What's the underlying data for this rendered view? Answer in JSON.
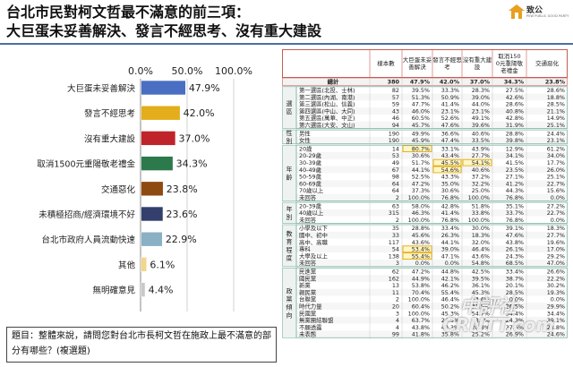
{
  "title_line1": "台北市民對柯文哲最不滿意的前三項：",
  "title_line2": "大巨蛋未妥善解決、發言不經思考、沒有重大建設",
  "logo": {
    "name": "台灣民意",
    "name_highlight": "致公",
    "sub": "PEW PUBLIC GOOD PARTY"
  },
  "question": "題目：整體來說，請問您對台北市長柯文哲在施政上最不滿意的部分有哪些？(複選題)",
  "watermark": {
    "line1": "中評社",
    "line2": "CRNTT.com"
  },
  "chart_data": {
    "type": "bar",
    "orientation": "horizontal",
    "categories": [
      "大巨蛋未妥善解決",
      "發言不經思考",
      "沒有重大建設",
      "取消1500元重陽敬老禮金",
      "交通惡化",
      "未積極招商/經濟環境不好",
      "台北市政府人員流動快速",
      "其他",
      "無明確意見"
    ],
    "values": [
      47.9,
      42.0,
      37.0,
      34.3,
      23.8,
      23.6,
      22.9,
      6.1,
      4.4
    ],
    "value_labels": [
      "47.9%",
      "42.0%",
      "37.0%",
      "34.3%",
      "23.8%",
      "23.6%",
      "22.9%",
      "6.1%",
      "4.4%"
    ],
    "colors": [
      "#4a6fc2",
      "#e3ad1b",
      "#c0242b",
      "#2c7a4c",
      "#8f4a12",
      "#343f6e",
      "#8ab0c4",
      "#f2d68c",
      "#c8c8cc"
    ],
    "xlim": [
      0,
      100
    ],
    "xticks": [
      "0.0%",
      "50.0%",
      "100.0%"
    ],
    "grid": true
  },
  "table": {
    "headers": [
      "樣本數",
      "大巨蛋未妥善解決",
      "發言不經思考",
      "沒有重大建設",
      "取消1500元重陽敬老禮金",
      "交通惡化"
    ],
    "total": {
      "label": "總計",
      "values": [
        "380",
        "47.9%",
        "42.0%",
        "37.0%",
        "34.3%",
        "23.8%"
      ]
    },
    "groups": [
      {
        "name": "選區",
        "rows": [
          {
            "label": "第一選區(北投、士林)",
            "values": [
              "82",
              "39.5%",
              "33.3%",
              "28.3%",
              "27.5%",
              "28.6%"
            ]
          },
          {
            "label": "第二選區(內湖、南港)",
            "values": [
              "57",
              "51.3%",
              "50.9%",
              "39.0%",
              "42.6%",
              "18.8%"
            ]
          },
          {
            "label": "第三選區(松山、信義)",
            "values": [
              "59",
              "47.7%",
              "41.4%",
              "44.0%",
              "28.6%",
              "28.5%"
            ]
          },
          {
            "label": "第四選區(中山、大同)",
            "values": [
              "43",
              "46.0%",
              "23.1%",
              "23.1%",
              "40.8%",
              "21.1%"
            ]
          },
          {
            "label": "第五選區(萬華、中正)",
            "values": [
              "46",
              "60.5%",
              "52.6%",
              "49.1%",
              "42.8%",
              "14.9%"
            ]
          },
          {
            "label": "第六選區(大安、文山)",
            "values": [
              "94",
              "45.7%",
              "47.6%",
              "39.6%",
              "31.9%",
              "25.1%"
            ]
          }
        ]
      },
      {
        "name": "性別",
        "rows": [
          {
            "label": "男性",
            "values": [
              "190",
              "49.9%",
              "36.6%",
              "40.6%",
              "28.8%",
              "24.4%"
            ]
          },
          {
            "label": "女性",
            "values": [
              "190",
              "45.9%",
              "47.4%",
              "33.5%",
              "39.8%",
              "23.1%"
            ]
          }
        ]
      },
      {
        "name": "年齡",
        "rows": [
          {
            "label": "20歲",
            "values": [
              "14",
              "80.7%",
              "33.1%",
              "43.9%",
              "12.9%",
              "61.2%"
            ]
          },
          {
            "label": "20-29歲",
            "values": [
              "53",
              "30.6%",
              "43.4%",
              "27.7%",
              "34.1%",
              "34.0%"
            ]
          },
          {
            "label": "30-39歲",
            "values": [
              "49",
              "51.7%",
              "45.5%",
              "54.1%",
              "41.5%",
              "17.7%"
            ]
          },
          {
            "label": "40-49歲",
            "values": [
              "67",
              "44.1%",
              "54.6%",
              "40.6%",
              "23.5%",
              "26.0%"
            ]
          },
          {
            "label": "50-59歲",
            "values": [
              "98",
              "52.5%",
              "43.3%",
              "37.2%",
              "27.1%",
              "25.1%"
            ]
          },
          {
            "label": "60-69歲",
            "values": [
              "64",
              "47.2%",
              "35.0%",
              "32.2%",
              "41.2%",
              "22.7%"
            ]
          },
          {
            "label": "70歲以上",
            "values": [
              "64",
              "37.3%",
              "30.6%",
              "25.0%",
              "44.3%",
              "15.6%"
            ]
          },
          {
            "label": "未回答",
            "values": [
              "2",
              "100.0%",
              "76.8%",
              "100.0%",
              "76.8%",
              "0.0%"
            ]
          }
        ]
      },
      {
        "name": "年別",
        "rows": [
          {
            "label": "20-39歲",
            "values": [
              "63",
              "58.0%",
              "42.8%",
              "51.8%",
              "35.1%",
              "27.2%"
            ]
          },
          {
            "label": "40歲以上",
            "values": [
              "315",
              "46.3%",
              "41.4%",
              "33.8%",
              "33.7%",
              "22.7%"
            ]
          },
          {
            "label": "未回答",
            "values": [
              "2",
              "100.0%",
              "76.8%",
              "100.0%",
              "76.8%",
              "0.0%"
            ]
          }
        ]
      },
      {
        "name": "教育程度",
        "rows": [
          {
            "label": "小學及以下",
            "values": [
              "35",
              "28.8%",
              "33.4%",
              "30.0%",
              "39.1%",
              "18.3%"
            ]
          },
          {
            "label": "國中、初中",
            "values": [
              "33",
              "45.6%",
              "26.3%",
              "18.3%",
              "47.6%",
              "27.7%"
            ]
          },
          {
            "label": "高中、高職",
            "values": [
              "117",
              "43.6%",
              "44.1%",
              "32.0%",
              "43.8%",
              "19.6%"
            ]
          },
          {
            "label": "專科",
            "values": [
              "54",
              "53.4%",
              "39.0%",
              "46.4%",
              "26.1%",
              "17.0%"
            ]
          },
          {
            "label": "大學及以上",
            "values": [
              "138",
              "55.4%",
              "47.1%",
              "43.6%",
              "24.3%",
              "29.2%"
            ]
          },
          {
            "label": "未回答",
            "values": [
              "3",
              "0.0%",
              "0.0%",
              "54.8%",
              "68.5%",
              "47.0%"
            ]
          }
        ]
      },
      {
        "name": "政黨傾向",
        "rows": [
          {
            "label": "民進黨",
            "values": [
              "62",
              "47.2%",
              "44.8%",
              "42.5%",
              "33.4%",
              "26.6%"
            ]
          },
          {
            "label": "國民黨",
            "values": [
              "162",
              "44.9%",
              "42.1%",
              "39.5%",
              "38.7%",
              "22.2%"
            ]
          },
          {
            "label": "新黨",
            "values": [
              "13",
              "53.8%",
              "46.2%",
              "36.1%",
              "20.1%",
              "30.2%"
            ]
          },
          {
            "label": "親民黨",
            "values": [
              "11",
              "70.4%",
              "55.4%",
              "45.3%",
              "28.5%",
              "19.3%"
            ]
          },
          {
            "label": "台聯黨",
            "values": [
              "2",
              "100.0%",
              "46.4%",
              "53.6%",
              "0.0%",
              "0.0%"
            ]
          },
          {
            "label": "時代力量",
            "values": [
              "20",
              "60.4%",
              "50.2%",
              "31.5%",
              "26.5%",
              "29.9%"
            ]
          },
          {
            "label": "民國黨",
            "values": [
              "3",
              "100.0%",
              "45.3%",
              "54.7%",
              "34.4%",
              "34.4%"
            ]
          },
          {
            "label": "無黨團結聯盟",
            "values": [
              "4",
              "63.7%",
              "24.5%",
              "63.7%",
              "24.3%",
              "39.1%"
            ]
          },
          {
            "label": "不願透露",
            "values": [
              "4",
              "43.8%",
              "40.3%",
              "28.8%",
              "37.6%",
              "28.8%"
            ]
          },
          {
            "label": "未表態",
            "values": [
              "99",
              "41.8%",
              "35.8%",
              "25.2%",
              "26.9%",
              "24.6%"
            ]
          }
        ]
      }
    ]
  }
}
